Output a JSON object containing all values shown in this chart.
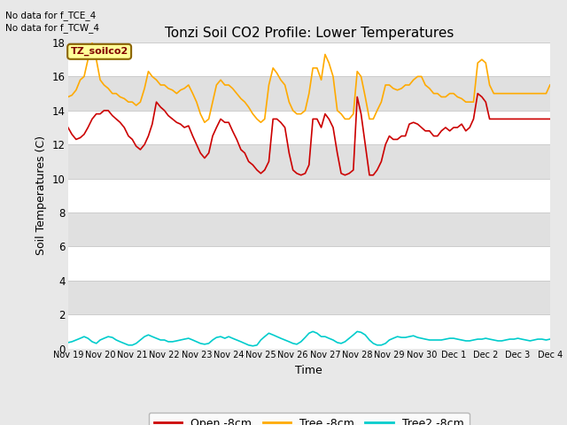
{
  "title": "Tonzi Soil CO2 Profile: Lower Temperatures",
  "xlabel": "Time",
  "ylabel": "Soil Temperatures (C)",
  "no_data_line1": "No data for f_TCE_4",
  "no_data_line2": "No data for f_TCW_4",
  "ylim": [
    0,
    18
  ],
  "yticks": [
    0,
    2,
    4,
    6,
    8,
    10,
    12,
    14,
    16,
    18
  ],
  "bg_color": "#e0e0e0",
  "band_light": "#f0f0f0",
  "band_dark": "#e0e0e0",
  "grid_line_color": "#cccccc",
  "legend_label": "TZ_soilco2",
  "legend_bg": "#ffff99",
  "legend_border_color": "#8b6400",
  "line_colors": {
    "open": "#cc0000",
    "tree": "#ffaa00",
    "tree2": "#00cccc"
  },
  "xtick_labels": [
    "Nov 19",
    "Nov 20",
    "Nov 21",
    "Nov 22",
    "Nov 23",
    "Nov 24",
    "Nov 25",
    "Nov 26",
    "Nov 27",
    "Nov 28",
    "Nov 29",
    "Nov 30",
    "Dec 1",
    "Dec 2",
    "Dec 3",
    "Dec 4"
  ],
  "open_x": [
    0.0,
    0.12,
    0.25,
    0.38,
    0.5,
    0.62,
    0.75,
    0.88,
    1.0,
    1.12,
    1.25,
    1.38,
    1.5,
    1.62,
    1.75,
    1.88,
    2.0,
    2.12,
    2.25,
    2.38,
    2.5,
    2.62,
    2.75,
    2.88,
    3.0,
    3.12,
    3.25,
    3.38,
    3.5,
    3.62,
    3.75,
    3.88,
    4.0,
    4.12,
    4.25,
    4.38,
    4.5,
    4.62,
    4.75,
    4.88,
    5.0,
    5.12,
    5.25,
    5.38,
    5.5,
    5.62,
    5.75,
    5.88,
    6.0,
    6.12,
    6.25,
    6.38,
    6.5,
    6.62,
    6.75,
    6.88,
    7.0,
    7.12,
    7.25,
    7.38,
    7.5,
    7.62,
    7.75,
    7.88,
    8.0,
    8.12,
    8.25,
    8.38,
    8.5,
    8.62,
    8.75,
    8.88,
    9.0,
    9.12,
    9.25,
    9.38,
    9.5,
    9.62,
    9.75,
    9.88,
    10.0,
    10.12,
    10.25,
    10.38,
    10.5,
    10.62,
    10.75,
    10.88,
    11.0,
    11.12,
    11.25,
    11.38,
    11.5,
    11.62,
    11.75,
    11.88,
    12.0,
    12.12,
    12.25,
    12.38,
    12.5,
    12.62,
    12.75,
    12.88,
    13.0,
    13.12,
    13.25,
    13.38,
    13.5,
    13.62,
    13.75,
    13.88,
    14.0,
    14.12,
    14.25,
    14.38,
    14.5,
    14.62,
    14.75,
    14.88,
    15.0
  ],
  "open_y": [
    13.0,
    12.6,
    12.3,
    12.4,
    12.6,
    13.0,
    13.5,
    13.8,
    13.8,
    14.0,
    14.0,
    13.7,
    13.5,
    13.3,
    13.0,
    12.5,
    12.3,
    11.9,
    11.7,
    12.0,
    12.5,
    13.2,
    14.5,
    14.2,
    14.0,
    13.7,
    13.5,
    13.3,
    13.2,
    13.0,
    13.1,
    12.5,
    12.0,
    11.5,
    11.2,
    11.5,
    12.5,
    13.0,
    13.5,
    13.3,
    13.3,
    12.8,
    12.3,
    11.7,
    11.5,
    11.0,
    10.8,
    10.5,
    10.3,
    10.5,
    11.0,
    13.5,
    13.5,
    13.3,
    13.0,
    11.5,
    10.5,
    10.3,
    10.2,
    10.3,
    10.8,
    13.5,
    13.5,
    13.0,
    13.8,
    13.5,
    13.0,
    11.5,
    10.3,
    10.2,
    10.3,
    10.5,
    14.8,
    13.8,
    12.0,
    10.2,
    10.2,
    10.5,
    11.0,
    12.0,
    12.5,
    12.3,
    12.3,
    12.5,
    12.5,
    13.2,
    13.3,
    13.2,
    13.0,
    12.8,
    12.8,
    12.5,
    12.5,
    12.8,
    13.0,
    12.8,
    13.0,
    13.0,
    13.2,
    12.8,
    13.0,
    13.5,
    15.0,
    14.8,
    14.5,
    13.5,
    13.5,
    13.5,
    13.5,
    13.5,
    13.5,
    13.5,
    13.5,
    13.5,
    13.5,
    13.5,
    13.5,
    13.5,
    13.5,
    13.5,
    13.5
  ],
  "tree_x": [
    0.0,
    0.12,
    0.25,
    0.38,
    0.5,
    0.62,
    0.75,
    0.88,
    1.0,
    1.12,
    1.25,
    1.38,
    1.5,
    1.62,
    1.75,
    1.88,
    2.0,
    2.12,
    2.25,
    2.38,
    2.5,
    2.62,
    2.75,
    2.88,
    3.0,
    3.12,
    3.25,
    3.38,
    3.5,
    3.62,
    3.75,
    3.88,
    4.0,
    4.12,
    4.25,
    4.38,
    4.5,
    4.62,
    4.75,
    4.88,
    5.0,
    5.12,
    5.25,
    5.38,
    5.5,
    5.62,
    5.75,
    5.88,
    6.0,
    6.12,
    6.25,
    6.38,
    6.5,
    6.62,
    6.75,
    6.88,
    7.0,
    7.12,
    7.25,
    7.38,
    7.5,
    7.62,
    7.75,
    7.88,
    8.0,
    8.12,
    8.25,
    8.38,
    8.5,
    8.62,
    8.75,
    8.88,
    9.0,
    9.12,
    9.25,
    9.38,
    9.5,
    9.62,
    9.75,
    9.88,
    10.0,
    10.12,
    10.25,
    10.38,
    10.5,
    10.62,
    10.75,
    10.88,
    11.0,
    11.12,
    11.25,
    11.38,
    11.5,
    11.62,
    11.75,
    11.88,
    12.0,
    12.12,
    12.25,
    12.38,
    12.5,
    12.62,
    12.75,
    12.88,
    13.0,
    13.12,
    13.25,
    13.38,
    13.5,
    13.62,
    13.75,
    13.88,
    14.0,
    14.12,
    14.25,
    14.38,
    14.5,
    14.62,
    14.75,
    14.88,
    15.0
  ],
  "tree_y": [
    14.8,
    14.9,
    15.2,
    15.8,
    16.0,
    17.0,
    18.0,
    17.0,
    15.8,
    15.5,
    15.3,
    15.0,
    15.0,
    14.8,
    14.7,
    14.5,
    14.5,
    14.3,
    14.5,
    15.3,
    16.3,
    16.0,
    15.8,
    15.5,
    15.5,
    15.3,
    15.2,
    15.0,
    15.2,
    15.3,
    15.5,
    15.0,
    14.5,
    13.8,
    13.3,
    13.5,
    14.5,
    15.5,
    15.8,
    15.5,
    15.5,
    15.3,
    15.0,
    14.7,
    14.5,
    14.2,
    13.8,
    13.5,
    13.3,
    13.5,
    15.5,
    16.5,
    16.2,
    15.8,
    15.5,
    14.5,
    14.0,
    13.8,
    13.8,
    14.0,
    15.0,
    16.5,
    16.5,
    15.8,
    17.3,
    16.8,
    16.0,
    14.0,
    13.8,
    13.5,
    13.5,
    13.8,
    16.3,
    16.0,
    14.8,
    13.5,
    13.5,
    14.0,
    14.5,
    15.5,
    15.5,
    15.3,
    15.2,
    15.3,
    15.5,
    15.5,
    15.8,
    16.0,
    16.0,
    15.5,
    15.3,
    15.0,
    15.0,
    14.8,
    14.8,
    15.0,
    15.0,
    14.8,
    14.7,
    14.5,
    14.5,
    14.5,
    16.8,
    17.0,
    16.8,
    15.5,
    15.0,
    15.0,
    15.0,
    15.0,
    15.0,
    15.0,
    15.0,
    15.0,
    15.0,
    15.0,
    15.0,
    15.0,
    15.0,
    15.0,
    15.5
  ],
  "tree2_x": [
    0.0,
    0.12,
    0.25,
    0.38,
    0.5,
    0.62,
    0.75,
    0.88,
    1.0,
    1.12,
    1.25,
    1.38,
    1.5,
    1.62,
    1.75,
    1.88,
    2.0,
    2.12,
    2.25,
    2.38,
    2.5,
    2.62,
    2.75,
    2.88,
    3.0,
    3.12,
    3.25,
    3.38,
    3.5,
    3.62,
    3.75,
    3.88,
    4.0,
    4.12,
    4.25,
    4.38,
    4.5,
    4.62,
    4.75,
    4.88,
    5.0,
    5.12,
    5.25,
    5.38,
    5.5,
    5.62,
    5.75,
    5.88,
    6.0,
    6.12,
    6.25,
    6.38,
    6.5,
    6.62,
    6.75,
    6.88,
    7.0,
    7.12,
    7.25,
    7.38,
    7.5,
    7.62,
    7.75,
    7.88,
    8.0,
    8.12,
    8.25,
    8.38,
    8.5,
    8.62,
    8.75,
    8.88,
    9.0,
    9.12,
    9.25,
    9.38,
    9.5,
    9.62,
    9.75,
    9.88,
    10.0,
    10.12,
    10.25,
    10.38,
    10.5,
    10.62,
    10.75,
    10.88,
    11.0,
    11.12,
    11.25,
    11.38,
    11.5,
    11.62,
    11.75,
    11.88,
    12.0,
    12.12,
    12.25,
    12.38,
    12.5,
    12.62,
    12.75,
    12.88,
    13.0,
    13.12,
    13.25,
    13.38,
    13.5,
    13.62,
    13.75,
    13.88,
    14.0,
    14.12,
    14.25,
    14.38,
    14.5,
    14.62,
    14.75,
    14.88,
    15.0
  ],
  "tree2_y": [
    0.35,
    0.4,
    0.5,
    0.6,
    0.7,
    0.6,
    0.4,
    0.3,
    0.5,
    0.6,
    0.7,
    0.65,
    0.5,
    0.4,
    0.3,
    0.2,
    0.2,
    0.3,
    0.5,
    0.7,
    0.8,
    0.7,
    0.6,
    0.5,
    0.5,
    0.4,
    0.4,
    0.45,
    0.5,
    0.55,
    0.6,
    0.5,
    0.4,
    0.3,
    0.25,
    0.3,
    0.5,
    0.65,
    0.7,
    0.6,
    0.7,
    0.6,
    0.5,
    0.4,
    0.3,
    0.2,
    0.15,
    0.2,
    0.5,
    0.7,
    0.9,
    0.8,
    0.7,
    0.6,
    0.5,
    0.4,
    0.3,
    0.25,
    0.4,
    0.65,
    0.9,
    1.0,
    0.9,
    0.7,
    0.7,
    0.6,
    0.5,
    0.35,
    0.3,
    0.4,
    0.6,
    0.8,
    1.0,
    0.95,
    0.8,
    0.5,
    0.3,
    0.2,
    0.2,
    0.3,
    0.5,
    0.6,
    0.7,
    0.65,
    0.65,
    0.7,
    0.75,
    0.65,
    0.6,
    0.55,
    0.5,
    0.5,
    0.5,
    0.5,
    0.55,
    0.6,
    0.6,
    0.55,
    0.5,
    0.45,
    0.45,
    0.5,
    0.55,
    0.55,
    0.6,
    0.55,
    0.5,
    0.45,
    0.45,
    0.5,
    0.55,
    0.55,
    0.6,
    0.55,
    0.5,
    0.45,
    0.5,
    0.55,
    0.55,
    0.5,
    0.55
  ]
}
